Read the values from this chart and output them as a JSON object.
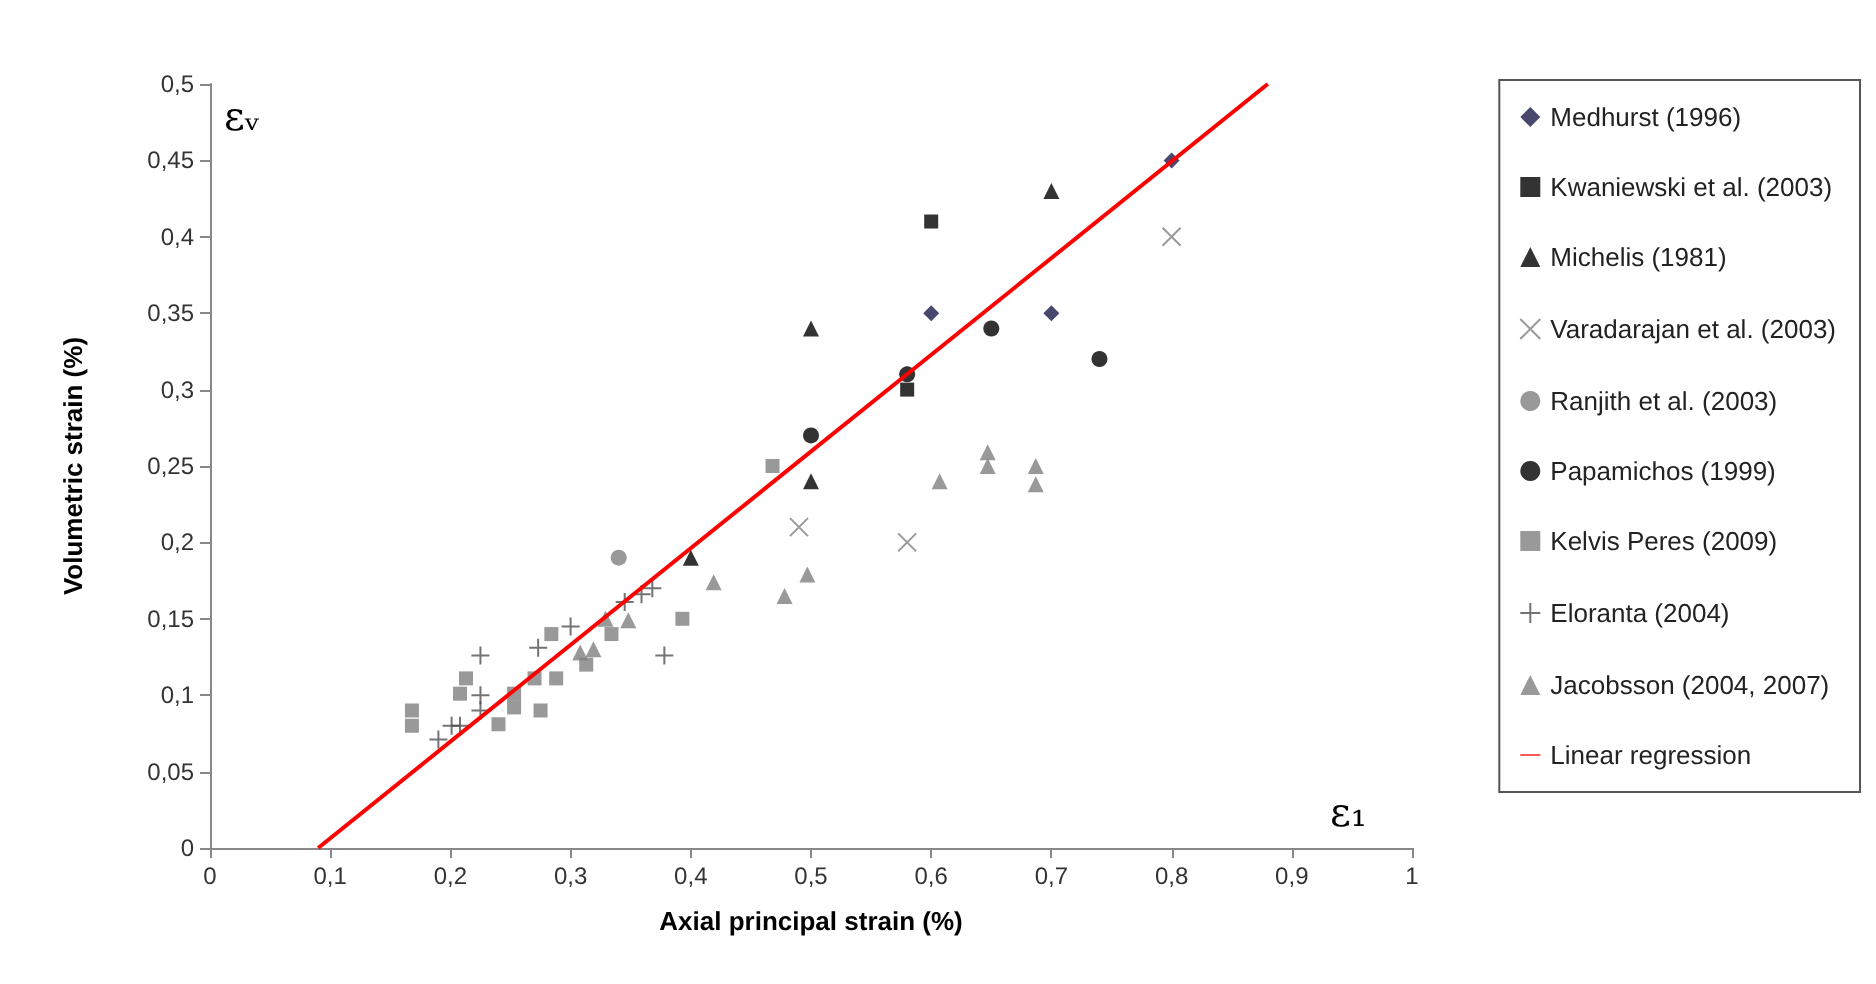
{
  "chart_data": {
    "type": "scatter",
    "xlabel": "Axial principal strain (%)",
    "ylabel": "Volumetric strain (%)",
    "annotations": [
      "εᵥ",
      "ε₁"
    ],
    "xlim": [
      0,
      1
    ],
    "ylim": [
      0,
      0.5
    ],
    "xticks": [
      0,
      {
        "value": 0.1,
        "label": "0,1"
      },
      {
        "value": 0.2,
        "label": "0,2"
      },
      {
        "value": 0.3,
        "label": "0,3"
      },
      {
        "value": 0.4,
        "label": "0,4"
      },
      {
        "value": 0.5,
        "label": "0,5"
      },
      {
        "value": 0.6,
        "label": "0,6"
      },
      {
        "value": 0.7,
        "label": "0,7"
      },
      {
        "value": 0.8,
        "label": "0,8"
      },
      {
        "value": 0.9,
        "label": "0,9"
      },
      1
    ],
    "yticks": [
      0,
      {
        "value": 0.05,
        "label": "0,05"
      },
      {
        "value": 0.1,
        "label": "0,1"
      },
      {
        "value": 0.15,
        "label": "0,15"
      },
      {
        "value": 0.2,
        "label": "0,2"
      },
      {
        "value": 0.25,
        "label": "0,25"
      },
      {
        "value": 0.3,
        "label": "0,3"
      },
      {
        "value": 0.35,
        "label": "0,35"
      },
      {
        "value": 0.4,
        "label": "0,4"
      },
      {
        "value": 0.45,
        "label": "0,45"
      },
      {
        "value": 0.5,
        "label": "0,5"
      }
    ],
    "grid": false,
    "legend": "right",
    "series": [
      {
        "name": "Medhurst (1996)",
        "color": "#1a1a4a",
        "marker": "diamond",
        "x": [
          0.6,
          0.7,
          0.8
        ],
        "values": [
          0.35,
          0.35,
          0.45
        ]
      },
      {
        "name": "Kwaniewski et al. (2003)",
        "color": "#000000",
        "marker": "square",
        "x": [
          0.6,
          0.58
        ],
        "values": [
          0.41,
          0.3
        ]
      },
      {
        "name": "Michelis (1981)",
        "color": "#000000",
        "marker": "triangle",
        "x": [
          0.5,
          0.5,
          0.4,
          0.7
        ],
        "values": [
          0.34,
          0.24,
          0.19,
          0.43
        ]
      },
      {
        "name": "Varadarajan et al. (2003)",
        "color": "#808080",
        "marker": "x",
        "x": [
          0.8,
          0.49,
          0.58
        ],
        "values": [
          0.4,
          0.21,
          0.2
        ]
      },
      {
        "name": "Ranjith et al. (2003)",
        "color": "#808080",
        "marker": "circle",
        "x": [
          0.34
        ],
        "values": [
          0.19
        ]
      },
      {
        "name": "Papamichos (1999)",
        "color": "#000000",
        "marker": "circle",
        "x": [
          0.5,
          0.58,
          0.65,
          0.74
        ],
        "values": [
          0.27,
          0.31,
          0.34,
          0.32
        ]
      },
      {
        "name": "Kelvis Peres (2009)",
        "color": "#808080",
        "marker": "square",
        "x": [
          0.168,
          0.168,
          0.213,
          0.208,
          0.24,
          0.253,
          0.253,
          0.27,
          0.275,
          0.288,
          0.284,
          0.313,
          0.334,
          0.393,
          0.468
        ],
        "values": [
          0.09,
          0.08,
          0.111,
          0.101,
          0.081,
          0.101,
          0.092,
          0.111,
          0.09,
          0.111,
          0.14,
          0.12,
          0.14,
          0.15,
          0.25
        ]
      },
      {
        "name": "Eloranta (2004)",
        "color": "#505050",
        "marker": "cross",
        "x": [
          0.19,
          0.201,
          0.208,
          0.225,
          0.225,
          0.225,
          0.273,
          0.3,
          0.345,
          0.359,
          0.368,
          0.378
        ],
        "values": [
          0.071,
          0.08,
          0.08,
          0.126,
          0.1,
          0.09,
          0.131,
          0.145,
          0.161,
          0.166,
          0.17,
          0.126
        ]
      },
      {
        "name": "Jacobsson (2004, 2007)",
        "color": "#808080",
        "marker": "triangle",
        "x": [
          0.308,
          0.319,
          0.329,
          0.348,
          0.419,
          0.478,
          0.497,
          0.607,
          0.647,
          0.647,
          0.687,
          0.687
        ],
        "values": [
          0.128,
          0.13,
          0.15,
          0.149,
          0.174,
          0.165,
          0.179,
          0.24,
          0.259,
          0.25,
          0.25,
          0.238
        ]
      },
      {
        "name": "Linear regression",
        "type": "line",
        "color": "#ff0000",
        "marker": "none",
        "x": [
          0.09,
          0.88
        ],
        "values": [
          0,
          0.5
        ]
      }
    ]
  }
}
